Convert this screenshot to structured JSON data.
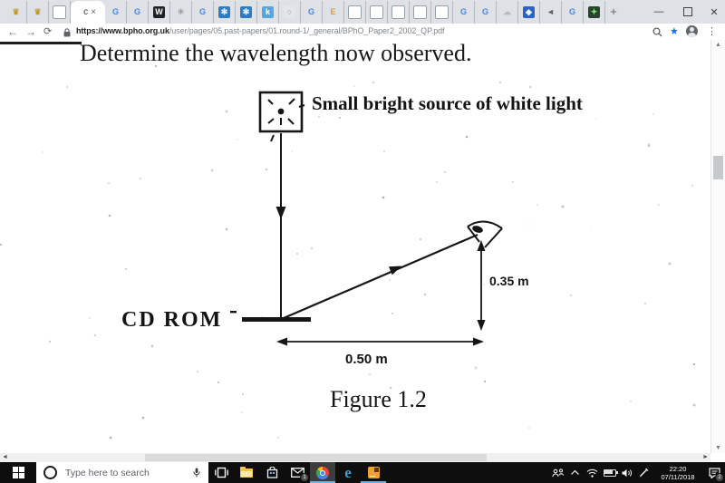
{
  "browser": {
    "tabs": [
      {
        "glyph": "♛",
        "fstyle": "color:#c79b2e"
      },
      {
        "glyph": "♛",
        "fstyle": "color:#c79b2e"
      },
      {
        "glyph": "",
        "fstyle": "background:#fff;border:1px solid #98a0a6"
      },
      {
        "glyph": "",
        "fstyle": "",
        "label": "c",
        "close": "×",
        "cls": "active"
      },
      {
        "glyph": "G",
        "fstyle": "color:#4285f4"
      },
      {
        "glyph": "G",
        "fstyle": "color:#4285f4"
      },
      {
        "glyph": "W",
        "fstyle": "background:#202124;color:#fff"
      },
      {
        "glyph": "✳",
        "fstyle": "color:#9aa0a6"
      },
      {
        "glyph": "G",
        "fstyle": "color:#4285f4"
      },
      {
        "glyph": "✻",
        "fstyle": "background:#2f7cc4;color:#fff"
      },
      {
        "glyph": "✻",
        "fstyle": "background:#2f7cc4;color:#fff"
      },
      {
        "glyph": "k",
        "fstyle": "background:#58a6dd;color:#fff"
      },
      {
        "glyph": "○",
        "fstyle": "background:#e4e6e8;color:#8a8f94"
      },
      {
        "glyph": "G",
        "fstyle": "color:#4285f4"
      },
      {
        "glyph": "E",
        "fstyle": "color:#e49b2d"
      },
      {
        "glyph": "",
        "fstyle": "background:#fff;border:1px solid #98a0a6"
      },
      {
        "glyph": "",
        "fstyle": "background:#fff;border:1px solid #98a0a6"
      },
      {
        "glyph": "",
        "fstyle": "background:#fff;border:1px solid #98a0a6"
      },
      {
        "glyph": "",
        "fstyle": "background:#fff;border:1px solid #98a0a6"
      },
      {
        "glyph": "",
        "fstyle": "background:#fff;border:1px solid #98a0a6"
      },
      {
        "glyph": "G",
        "fstyle": "color:#4285f4"
      },
      {
        "glyph": "G",
        "fstyle": "color:#4285f4"
      },
      {
        "glyph": "☁",
        "fstyle": "color:#b8bcc0"
      },
      {
        "glyph": "◈",
        "fstyle": "background:#2864c9;color:#fff"
      },
      {
        "glyph": "◄",
        "fstyle": "color:#5f6368"
      },
      {
        "glyph": "G",
        "fstyle": "color:#4285f4"
      },
      {
        "glyph": "✦",
        "fstyle": "background:#27452a;color:#7ae582"
      }
    ],
    "new_tab_label": "+",
    "window_controls": {
      "minimize": "—",
      "close": "✕"
    },
    "toolbar": {
      "back": "←",
      "forward": "→",
      "reload": "⟳",
      "url_host": "https://www.bpho.org.uk",
      "url_path": "/user/pages/05.past-papers/01.round-1/_general/BPhO_Paper2_2002_QP.pdf",
      "star": "★",
      "menu": "⋮"
    }
  },
  "pdf": {
    "heading": "Determine the wavelength now observed.",
    "source_label": "Small bright source of white light",
    "cdrom_label": "CD ROM",
    "height_label": "0.35 m",
    "width_label": "0.50 m",
    "figure_caption": "Figure 1.2"
  },
  "scrollbar": {
    "up": "▲",
    "down": "▼",
    "left": "◄",
    "right": "►"
  },
  "taskbar": {
    "search_placeholder": "Type here to search",
    "mail_badge": "1",
    "action_badge": "2",
    "clock_time": "22:20",
    "clock_date": "07/11/2018"
  },
  "colors": {
    "accent_star": "#1a73e8",
    "taskbar_underline": "#6cb2e2",
    "tabstrip_bg": "#dee1e6",
    "taskbar_bg": "#0e0e0e"
  }
}
